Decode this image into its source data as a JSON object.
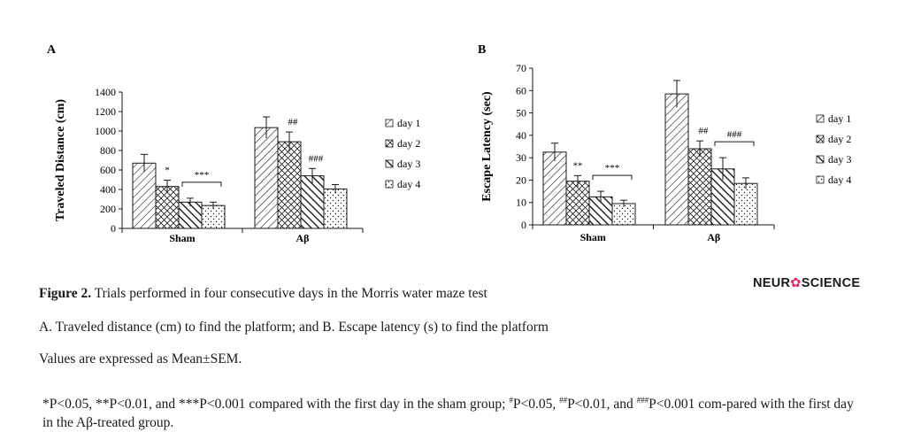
{
  "chart_data": [
    {
      "type": "bar",
      "panel_label": "A",
      "ylabel": "Traveled Distance (cm)",
      "ylim": [
        0,
        1400
      ],
      "yticks": [
        "0",
        "200",
        "400",
        "600",
        "800",
        "1000",
        "1200",
        "1400"
      ],
      "categories": [
        "Sham",
        "Aβ"
      ],
      "series": [
        {
          "name": "day 1",
          "values": [
            670,
            1035
          ],
          "errors": [
            90,
            110
          ]
        },
        {
          "name": "day 2",
          "values": [
            430,
            890
          ],
          "errors": [
            65,
            100
          ]
        },
        {
          "name": "day 3",
          "values": [
            270,
            540
          ],
          "errors": [
            40,
            75
          ]
        },
        {
          "name": "day 4",
          "values": [
            235,
            405
          ],
          "errors": [
            35,
            45
          ]
        }
      ],
      "annotations": {
        "sham_day2": "*",
        "sham_day3_4": "***",
        "ab_day2": "##",
        "ab_day3": "###"
      },
      "legend": "right",
      "grid": false
    },
    {
      "type": "bar",
      "panel_label": "B",
      "ylabel": "Escape Latency (sec)",
      "ylim": [
        0,
        70
      ],
      "yticks": [
        "0",
        "10",
        "20",
        "30",
        "40",
        "50",
        "60",
        "70"
      ],
      "categories": [
        "Sham",
        "Aβ"
      ],
      "series": [
        {
          "name": "day 1",
          "values": [
            32.5,
            58.5
          ],
          "errors": [
            4,
            6
          ]
        },
        {
          "name": "day 2",
          "values": [
            19.5,
            34
          ],
          "errors": [
            2.5,
            3.5
          ]
        },
        {
          "name": "day 3",
          "values": [
            12.5,
            25
          ],
          "errors": [
            2.5,
            5
          ]
        },
        {
          "name": "day 4",
          "values": [
            9.5,
            18.5
          ],
          "errors": [
            1.5,
            2.5
          ]
        }
      ],
      "annotations": {
        "sham_day2": "**",
        "sham_day3_4": "***",
        "ab_day2": "##",
        "ab_day3_4": "###"
      },
      "legend": "right",
      "grid": false
    }
  ],
  "caption": {
    "figure_label": "Figure 2.",
    "title": " Trials performed in four consecutive days in the Morris water maze test",
    "panels": "A. Traveled distance (cm) to find the platform; and B. Escape latency (s) to find the platform",
    "values_note": "Values are expressed as Mean±SEM.",
    "footnote": {
      "p1": "*P<0.05, **P<0.01, and ***P<0.001 compared with the first day in the sham group; ",
      "s1": "#",
      "p2": "P<0.05, ",
      "s2": "##",
      "p3": "P<0.01, and ",
      "s3": "###",
      "p4": "P<0.001 com-pared with the first day in the Aβ-treated group."
    }
  },
  "logo": {
    "pre": "NEUR",
    "mark": "✿",
    "post": "SCIENCE"
  },
  "colors": {
    "ink": "#1a1a1a",
    "logo_accent": "#e0245e"
  }
}
